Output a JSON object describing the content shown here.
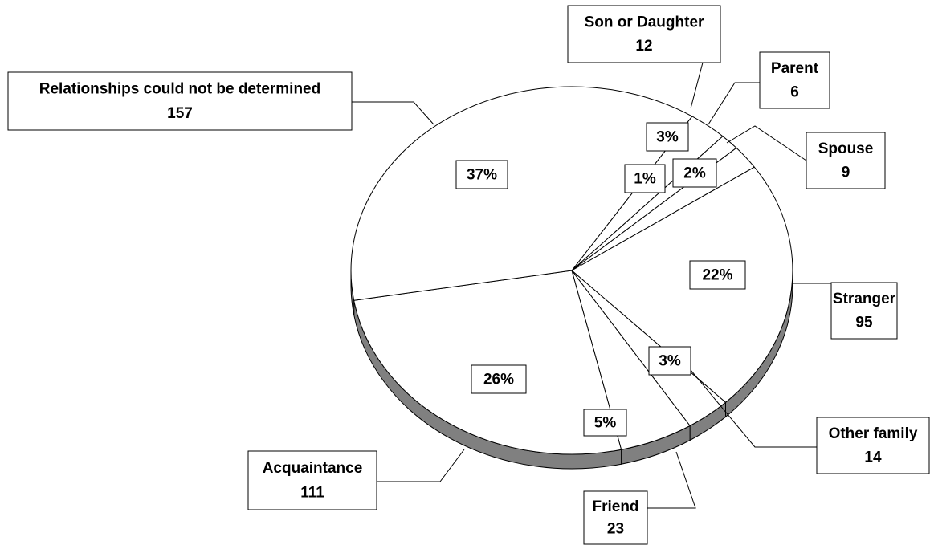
{
  "chart_data": {
    "type": "pie",
    "categories": [
      "Son or Daughter",
      "Parent",
      "Spouse",
      "Stranger",
      "Other family",
      "Friend",
      "Acquaintance",
      "Relationships could not be determined"
    ],
    "values": [
      12,
      6,
      9,
      95,
      14,
      23,
      111,
      157
    ],
    "percentages": [
      3,
      1,
      2,
      22,
      3,
      5,
      26,
      37
    ],
    "percentage_labels": [
      "3%",
      "1%",
      "2%",
      "22%",
      "3%",
      "5%",
      "26%",
      "37%"
    ],
    "color": "#ffffff",
    "side_color": "#808080"
  }
}
